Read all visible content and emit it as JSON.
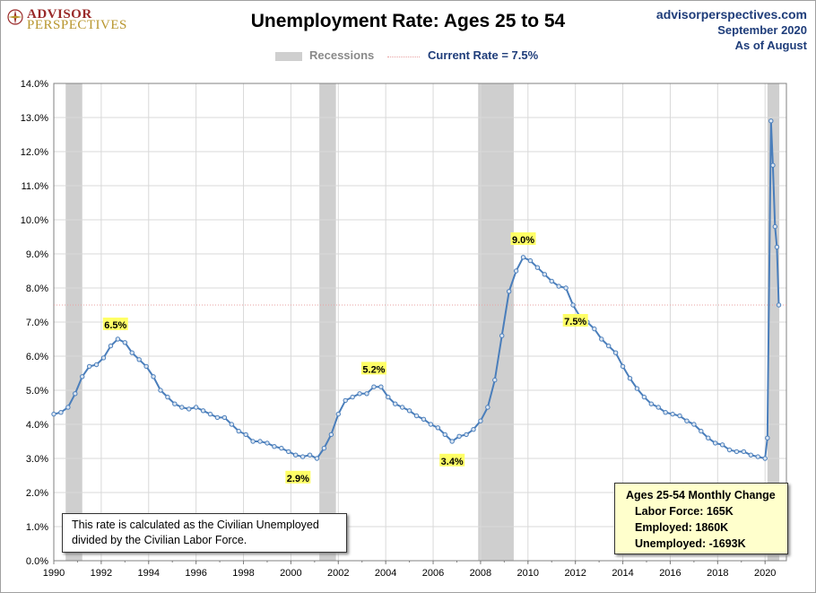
{
  "header": {
    "logo_line1": "ADVISOR",
    "logo_line2": "PERSPECTIVES",
    "source_site": "advisorperspectives.com",
    "source_date": "September 2020",
    "source_asof": "As of August"
  },
  "legend": {
    "recessions_label": "Recessions",
    "current_label": "Current Rate = 7.5%"
  },
  "note": {
    "text_line1": "This rate is calculated as the Civilian Unemployed",
    "text_line2": "divided by the Civilian Labor Force."
  },
  "monthly_change": {
    "title": "Ages 25-54 Monthly Change",
    "labor_force": "Labor Force:  165K",
    "employed": "Employed:  1860K",
    "unemployed": "Unemployed:  -1693K"
  },
  "colors": {
    "line": "#4a7ebb",
    "marker_fill": "#dce6f2",
    "recession": "#cfcfcf",
    "current_rate_line": "#e8a0a0",
    "annotation_bg": "#ffff66",
    "title_blue": "#1f3d7a"
  },
  "chart_data": {
    "type": "line",
    "title": "Unemployment Rate: Ages 25 to 54",
    "xlabel": "",
    "ylabel": "",
    "xlim": [
      1990,
      2020.9
    ],
    "ylim": [
      0,
      14
    ],
    "y_ticks": [
      0,
      1,
      2,
      3,
      4,
      5,
      6,
      7,
      8,
      9,
      10,
      11,
      12,
      13,
      14
    ],
    "y_tick_labels": [
      "0.0%",
      "1.0%",
      "2.0%",
      "3.0%",
      "4.0%",
      "5.0%",
      "6.0%",
      "7.0%",
      "8.0%",
      "9.0%",
      "10.0%",
      "11.0%",
      "12.0%",
      "13.0%",
      "14.0%"
    ],
    "x_ticks": [
      1990,
      1992,
      1994,
      1996,
      1998,
      2000,
      2002,
      2004,
      2006,
      2008,
      2010,
      2012,
      2014,
      2016,
      2018,
      2020
    ],
    "x_tick_labels": [
      "1990",
      "1992",
      "1994",
      "1996",
      "1998",
      "2000",
      "2002",
      "2004",
      "2006",
      "2008",
      "2010",
      "2012",
      "2014",
      "2016",
      "2018",
      "2020"
    ],
    "grid": true,
    "current_rate": 7.5,
    "recessions": [
      [
        1990.5,
        1991.2
      ],
      [
        2001.2,
        2001.9
      ],
      [
        2007.9,
        2009.4
      ],
      [
        2020.1,
        2020.6
      ]
    ],
    "series": [
      {
        "points": [
          [
            1990.0,
            4.3
          ],
          [
            1990.3,
            4.35
          ],
          [
            1990.6,
            4.5
          ],
          [
            1990.9,
            4.9
          ],
          [
            1991.2,
            5.4
          ],
          [
            1991.5,
            5.7
          ],
          [
            1991.8,
            5.75
          ],
          [
            1992.1,
            5.95
          ],
          [
            1992.4,
            6.3
          ],
          [
            1992.7,
            6.5
          ],
          [
            1993.0,
            6.4
          ],
          [
            1993.3,
            6.1
          ],
          [
            1993.6,
            5.9
          ],
          [
            1993.9,
            5.7
          ],
          [
            1994.2,
            5.4
          ],
          [
            1994.5,
            5.0
          ],
          [
            1994.8,
            4.8
          ],
          [
            1995.1,
            4.6
          ],
          [
            1995.4,
            4.5
          ],
          [
            1995.7,
            4.45
          ],
          [
            1996.0,
            4.5
          ],
          [
            1996.3,
            4.4
          ],
          [
            1996.6,
            4.3
          ],
          [
            1996.9,
            4.2
          ],
          [
            1997.2,
            4.2
          ],
          [
            1997.5,
            4.0
          ],
          [
            1997.8,
            3.8
          ],
          [
            1998.1,
            3.7
          ],
          [
            1998.4,
            3.5
          ],
          [
            1998.7,
            3.5
          ],
          [
            1999.0,
            3.45
          ],
          [
            1999.3,
            3.35
          ],
          [
            1999.6,
            3.3
          ],
          [
            1999.9,
            3.2
          ],
          [
            2000.2,
            3.1
          ],
          [
            2000.5,
            3.05
          ],
          [
            2000.8,
            3.1
          ],
          [
            2001.1,
            3.0
          ],
          [
            2001.4,
            3.3
          ],
          [
            2001.7,
            3.7
          ],
          [
            2002.0,
            4.3
          ],
          [
            2002.3,
            4.7
          ],
          [
            2002.6,
            4.8
          ],
          [
            2002.9,
            4.9
          ],
          [
            2003.2,
            4.9
          ],
          [
            2003.5,
            5.1
          ],
          [
            2003.8,
            5.1
          ],
          [
            2004.1,
            4.8
          ],
          [
            2004.4,
            4.6
          ],
          [
            2004.7,
            4.5
          ],
          [
            2005.0,
            4.4
          ],
          [
            2005.3,
            4.25
          ],
          [
            2005.6,
            4.15
          ],
          [
            2005.9,
            4.0
          ],
          [
            2006.2,
            3.9
          ],
          [
            2006.5,
            3.7
          ],
          [
            2006.8,
            3.5
          ],
          [
            2007.1,
            3.65
          ],
          [
            2007.4,
            3.7
          ],
          [
            2007.7,
            3.85
          ],
          [
            2008.0,
            4.1
          ],
          [
            2008.3,
            4.5
          ],
          [
            2008.6,
            5.3
          ],
          [
            2008.9,
            6.6
          ],
          [
            2009.2,
            7.9
          ],
          [
            2009.5,
            8.5
          ],
          [
            2009.8,
            8.9
          ],
          [
            2010.1,
            8.8
          ],
          [
            2010.4,
            8.6
          ],
          [
            2010.7,
            8.4
          ],
          [
            2011.0,
            8.2
          ],
          [
            2011.3,
            8.05
          ],
          [
            2011.6,
            8.0
          ],
          [
            2011.9,
            7.5
          ],
          [
            2012.2,
            7.15
          ],
          [
            2012.5,
            7.0
          ],
          [
            2012.8,
            6.8
          ],
          [
            2013.1,
            6.5
          ],
          [
            2013.4,
            6.3
          ],
          [
            2013.7,
            6.1
          ],
          [
            2014.0,
            5.7
          ],
          [
            2014.3,
            5.35
          ],
          [
            2014.6,
            5.05
          ],
          [
            2014.9,
            4.8
          ],
          [
            2015.2,
            4.6
          ],
          [
            2015.5,
            4.5
          ],
          [
            2015.8,
            4.35
          ],
          [
            2016.1,
            4.3
          ],
          [
            2016.4,
            4.25
          ],
          [
            2016.7,
            4.1
          ],
          [
            2017.0,
            4.0
          ],
          [
            2017.3,
            3.8
          ],
          [
            2017.6,
            3.6
          ],
          [
            2017.9,
            3.45
          ],
          [
            2018.2,
            3.4
          ],
          [
            2018.5,
            3.25
          ],
          [
            2018.8,
            3.2
          ],
          [
            2019.1,
            3.2
          ],
          [
            2019.4,
            3.1
          ],
          [
            2019.7,
            3.05
          ],
          [
            2020.0,
            3.0
          ],
          [
            2020.1,
            3.6
          ],
          [
            2020.25,
            12.9
          ],
          [
            2020.33,
            11.6
          ],
          [
            2020.42,
            9.8
          ],
          [
            2020.5,
            9.2
          ],
          [
            2020.58,
            7.5
          ]
        ]
      }
    ],
    "annotations": [
      {
        "x": 1992.6,
        "y": 6.5,
        "text": "6.5%"
      },
      {
        "x": 2000.3,
        "y": 2.9,
        "text": "2.9%"
      },
      {
        "x": 2003.5,
        "y": 5.2,
        "text": "5.2%"
      },
      {
        "x": 2006.8,
        "y": 3.4,
        "text": "3.4%"
      },
      {
        "x": 2009.8,
        "y": 9.0,
        "text": "9.0%"
      },
      {
        "x": 2012.0,
        "y": 7.5,
        "text": "7.5%"
      }
    ]
  }
}
